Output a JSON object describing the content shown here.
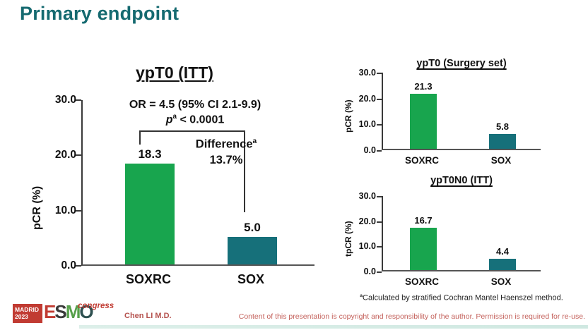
{
  "slide": {
    "title": "Primary endpoint",
    "presenter": "Chen LI M.D.",
    "disclaimer": "Content of this presentation is copyright and responsibility of the author. Permission is required for re-use.",
    "footnote_sup": "a",
    "footnote": "Calculated by stratified Cochran Mantel Haenszel method.",
    "logo": {
      "city": "MADRID",
      "year": "2023",
      "org_e": "E",
      "org_s": "S",
      "org_m": "M",
      "org_o": "O",
      "suffix": "congress"
    }
  },
  "colors": {
    "title_teal": "#156a70",
    "bar_green": "#18a54e",
    "bar_teal": "#16707a",
    "logo_red": "#c13b32",
    "footer_red": "#c4625c",
    "axis": "#3a3a3a",
    "strip_teal": "#cfe8e1"
  },
  "chart_data": [
    {
      "type": "bar",
      "title": "ypT0 (ITT)",
      "ylabel": "pCR (%)",
      "ylim": [
        0,
        30
      ],
      "yticks": [
        "30.0",
        "20.0",
        "10.0",
        "0.0"
      ],
      "categories": [
        "SOXRC",
        "SOX"
      ],
      "values": [
        18.3,
        5.0
      ],
      "value_labels": [
        "18.3",
        "5.0"
      ],
      "series_colors": [
        "#18a54e",
        "#16707a"
      ],
      "annotations": {
        "or_line": "OR = 4.5 (95% CI 2.1-9.9)",
        "p_prefix": "p",
        "p_sup": "a",
        "p_rest": " < 0.0001",
        "diff_label": "Difference",
        "diff_sup": "a",
        "diff_value": "13.7%"
      }
    },
    {
      "type": "bar",
      "title": "ypT0 (Surgery set)",
      "ylabel": "pCR (%)",
      "ylim": [
        0,
        30
      ],
      "yticks": [
        "30.0",
        "20.0",
        "10.0",
        "0.0"
      ],
      "categories": [
        "SOXRC",
        "SOX"
      ],
      "values": [
        21.3,
        5.8
      ],
      "value_labels": [
        "21.3",
        "5.8"
      ],
      "series_colors": [
        "#18a54e",
        "#16707a"
      ]
    },
    {
      "type": "bar",
      "title": "ypT0N0 (ITT)",
      "ylabel": "tpCR (%)",
      "ylim": [
        0,
        30
      ],
      "yticks": [
        "30.0",
        "20.0",
        "10.0",
        "0.0"
      ],
      "categories": [
        "SOXRC",
        "SOX"
      ],
      "values": [
        16.7,
        4.4
      ],
      "value_labels": [
        "16.7",
        "4.4"
      ],
      "series_colors": [
        "#18a54e",
        "#16707a"
      ]
    }
  ]
}
